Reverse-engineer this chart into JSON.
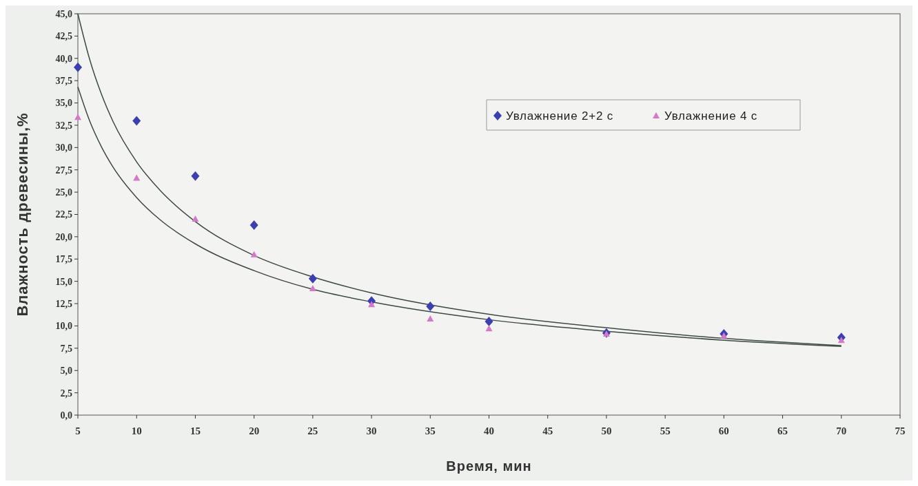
{
  "chart_data": {
    "type": "scatter",
    "xlabel": "Время, мин",
    "ylabel": "Влажность древесины,%",
    "xlim": [
      5,
      75
    ],
    "xticks": [
      5,
      10,
      15,
      20,
      25,
      30,
      35,
      40,
      45,
      50,
      55,
      60,
      65,
      70,
      75
    ],
    "ylim": [
      0,
      45
    ],
    "yticks": [
      {
        "value": 0,
        "label": "0,0"
      },
      {
        "value": 2.5,
        "label": "2,5"
      },
      {
        "value": 5,
        "label": "5,0"
      },
      {
        "value": 7.5,
        "label": "7,5"
      },
      {
        "value": 10,
        "label": "10,0"
      },
      {
        "value": 12.5,
        "label": "12,5"
      },
      {
        "value": 15,
        "label": "15,0"
      },
      {
        "value": 17.5,
        "label": "17,5"
      },
      {
        "value": 20,
        "label": "20,0"
      },
      {
        "value": 22.5,
        "label": "22,5"
      },
      {
        "value": 25,
        "label": "25,0"
      },
      {
        "value": 27.5,
        "label": "27,5"
      },
      {
        "value": 30,
        "label": "30,0"
      },
      {
        "value": 32.5,
        "label": "32,5"
      },
      {
        "value": 35,
        "label": "35,0"
      },
      {
        "value": 37.5,
        "label": "37,5"
      },
      {
        "value": 40,
        "label": "40,0"
      },
      {
        "value": 42.5,
        "label": "42,5"
      },
      {
        "value": 45,
        "label": "45,0"
      }
    ],
    "grid": false,
    "legend": "top right",
    "series": [
      {
        "name": "Увлажнение 2+2 с",
        "color": "#3b3fb0",
        "marker": "diamond",
        "x": [
          5,
          10,
          15,
          20,
          25,
          30,
          35,
          40,
          50,
          60,
          70
        ],
        "values": [
          39.0,
          33.0,
          26.8,
          21.3,
          15.3,
          12.8,
          12.2,
          10.5,
          9.2,
          9.1,
          8.7
        ]
      },
      {
        "name": "Увлажнение 4 с",
        "color": "#d678c8",
        "marker": "triangle",
        "x": [
          5,
          10,
          15,
          20,
          25,
          30,
          35,
          40,
          50,
          60,
          70
        ],
        "values": [
          33.4,
          26.6,
          22.0,
          18.0,
          14.2,
          12.4,
          10.8,
          9.7,
          9.1,
          8.9,
          8.4
        ]
      },
      {
        "type": "line",
        "color": "#3c4a42",
        "x": [
          5,
          6,
          7,
          8,
          10,
          12,
          15,
          20,
          25,
          30,
          40,
          50,
          60,
          70
        ],
        "values": [
          45.0,
          39.9,
          36.0,
          32.9,
          28.4,
          25.2,
          21.7,
          17.9,
          15.5,
          13.7,
          11.3,
          9.8,
          8.6,
          7.8
        ]
      },
      {
        "type": "line",
        "color": "#3c4a42",
        "x": [
          5,
          6,
          7,
          8,
          10,
          12,
          15,
          20,
          25,
          30,
          40,
          50,
          60,
          70
        ],
        "values": [
          36.8,
          33.0,
          30.1,
          27.8,
          24.4,
          21.9,
          19.2,
          16.2,
          14.1,
          12.7,
          10.7,
          9.4,
          8.4,
          7.7
        ]
      }
    ]
  }
}
